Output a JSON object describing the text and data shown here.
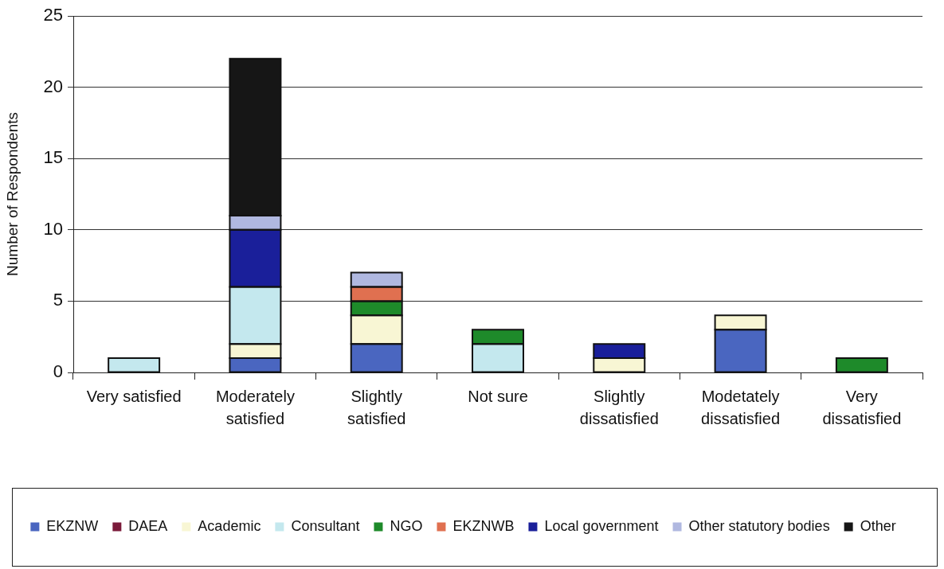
{
  "chart_data": {
    "type": "bar",
    "ylabel": "Number of Respondents",
    "categories": [
      "Very satisfied",
      "Moderately satisfied",
      "Slightly satisfied",
      "Not sure",
      "Slightly dissatisfied",
      "Modetately dissatisfied",
      "Very dissatisfied"
    ],
    "series": [
      {
        "name": "EKZNW",
        "color": "#4a66c0",
        "values": [
          null,
          1,
          2,
          null,
          null,
          3,
          null
        ]
      },
      {
        "name": "DAEA",
        "color": "#7a1a3a",
        "values": [
          null,
          null,
          null,
          null,
          null,
          null,
          null
        ]
      },
      {
        "name": "Academic",
        "color": "#f8f6d4",
        "values": [
          null,
          1,
          2,
          null,
          1,
          1,
          null
        ]
      },
      {
        "name": "Consultant",
        "color": "#c4e8ee",
        "values": [
          1,
          4,
          null,
          2,
          null,
          null,
          null
        ]
      },
      {
        "name": "NGO",
        "color": "#1e8a2a",
        "values": [
          null,
          null,
          1,
          1,
          null,
          null,
          1
        ]
      },
      {
        "name": "EKZNWB",
        "color": "#e07050",
        "values": [
          null,
          null,
          1,
          null,
          null,
          null,
          null
        ]
      },
      {
        "name": "Local government",
        "color": "#1a1f9a",
        "values": [
          null,
          4,
          null,
          null,
          1,
          null,
          null
        ]
      },
      {
        "name": "Other statutory bodies",
        "color": "#b0b8e0",
        "values": [
          null,
          1,
          1,
          null,
          null,
          null,
          null
        ]
      },
      {
        "name": "Other",
        "color": "#161616",
        "values": [
          null,
          11,
          null,
          null,
          null,
          null,
          null
        ]
      }
    ],
    "stacked": true,
    "ylim": [
      0,
      25
    ],
    "yticks": [
      0,
      5,
      10,
      15,
      20,
      25
    ],
    "grid": "y",
    "legend": "bottom"
  }
}
